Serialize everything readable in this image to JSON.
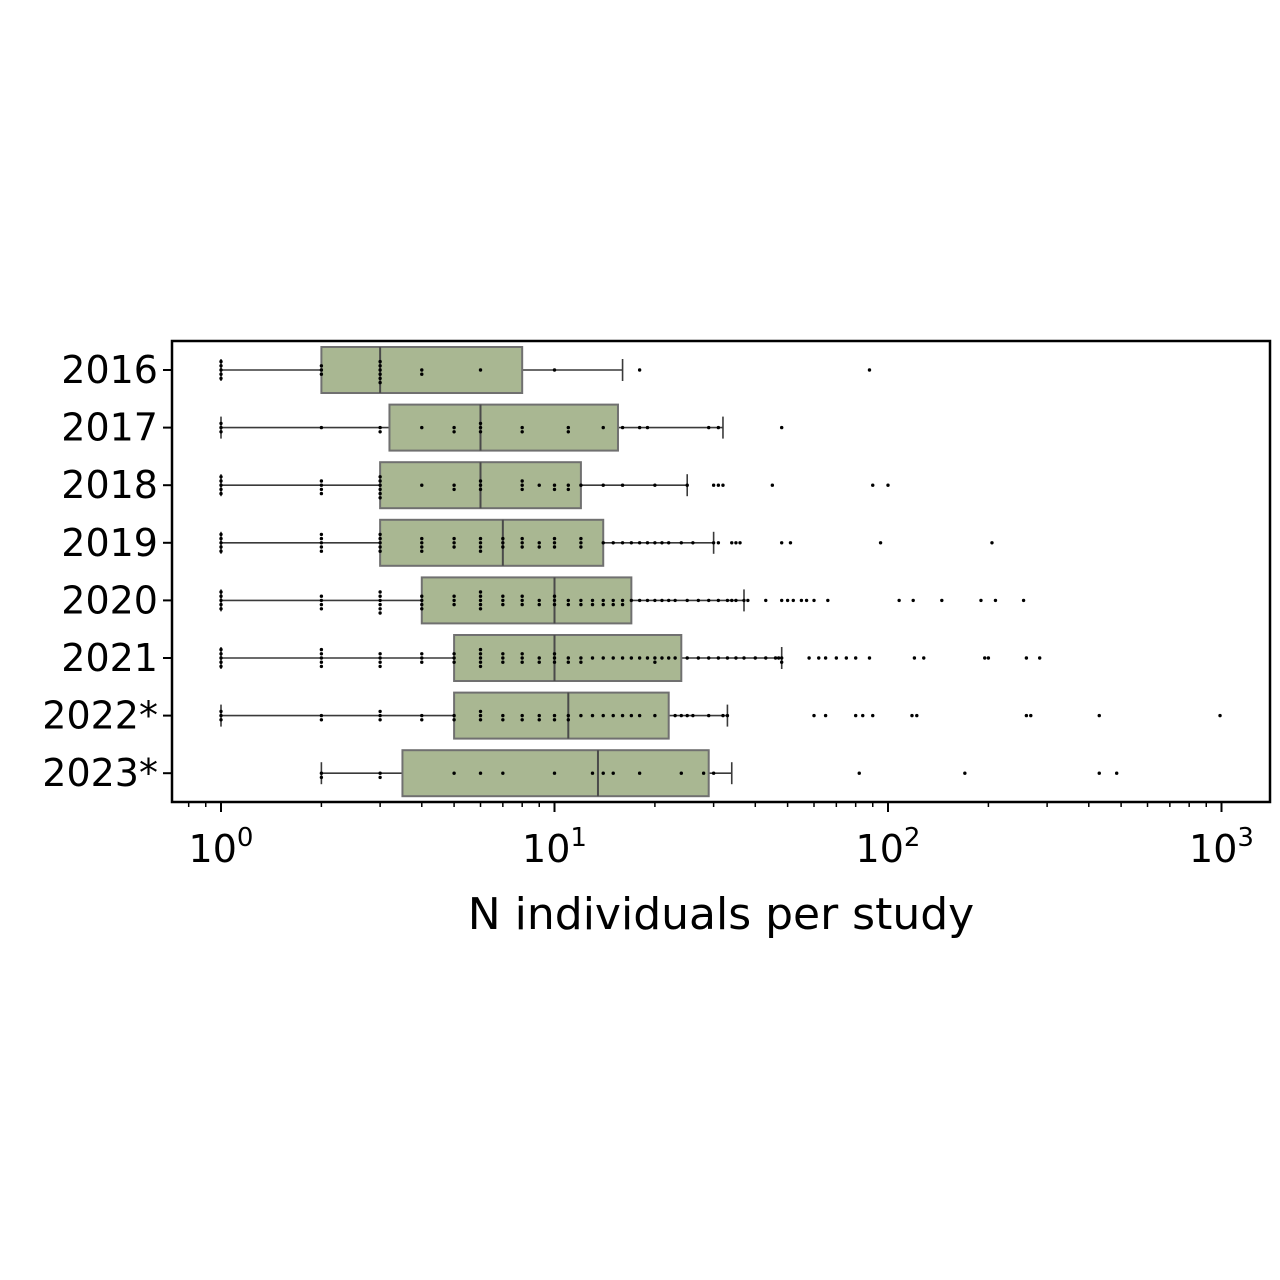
{
  "chart_data": {
    "type": "boxplot",
    "orientation": "horizontal",
    "xlabel": "N individuals per study",
    "ylabel": "",
    "x_scale": "log",
    "xlim": [
      0.72,
      1350
    ],
    "x_ticks": [
      {
        "value": 1,
        "base": "10",
        "exp": "0"
      },
      {
        "value": 10,
        "base": "10",
        "exp": "1"
      },
      {
        "value": 100,
        "base": "10",
        "exp": "2"
      },
      {
        "value": 1000,
        "base": "10",
        "exp": "3"
      }
    ],
    "categories": [
      "2016",
      "2017",
      "2018",
      "2019",
      "2020",
      "2021",
      "2022*",
      "2023*"
    ],
    "box_color": "#a9b792",
    "box_edge_color": "#707070",
    "point_color": "#000000",
    "boxes": [
      {
        "label": "2016",
        "whisker_low": 1,
        "q1": 2,
        "median": 3,
        "q3": 8,
        "whisker_high": 16,
        "points": [
          1,
          1,
          1,
          1,
          1,
          2,
          2,
          2,
          3,
          3,
          3,
          3,
          3,
          3,
          4,
          4,
          6,
          10,
          18,
          88
        ]
      },
      {
        "label": "2017",
        "whisker_low": 1,
        "q1": 3.2,
        "median": 6,
        "q3": 15.5,
        "whisker_high": 32,
        "points": [
          1,
          1,
          1,
          2,
          3,
          3,
          4,
          5,
          5,
          6,
          6,
          6,
          8,
          8,
          11,
          11,
          14,
          16,
          18,
          19,
          29,
          31,
          48
        ]
      },
      {
        "label": "2018",
        "whisker_low": 1,
        "q1": 3,
        "median": 6,
        "q3": 12,
        "whisker_high": 25,
        "points": [
          1,
          1,
          1,
          1,
          1,
          2,
          2,
          2,
          2,
          3,
          3,
          3,
          3,
          3,
          3,
          4,
          5,
          5,
          6,
          6,
          6,
          8,
          8,
          8,
          9,
          10,
          10,
          11,
          11,
          12,
          14,
          16,
          20,
          25,
          30,
          31,
          32,
          45,
          90,
          100
        ]
      },
      {
        "label": "2019",
        "whisker_low": 1,
        "q1": 3,
        "median": 7,
        "q3": 14,
        "whisker_high": 30,
        "points": [
          1,
          1,
          1,
          1,
          1,
          2,
          2,
          2,
          2,
          2,
          3,
          3,
          3,
          3,
          3,
          4,
          4,
          4,
          4,
          5,
          5,
          5,
          6,
          6,
          6,
          6,
          7,
          7,
          7,
          8,
          8,
          8,
          9,
          9,
          10,
          10,
          10,
          12,
          12,
          12,
          14,
          15,
          16,
          17,
          18,
          19,
          20,
          21,
          22,
          24,
          26,
          30,
          31,
          34,
          35,
          36,
          48,
          51,
          95,
          205
        ]
      },
      {
        "label": "2020",
        "whisker_low": 1,
        "q1": 4,
        "median": 10,
        "q3": 17,
        "whisker_high": 37,
        "points": [
          1,
          1,
          1,
          1,
          1,
          2,
          2,
          2,
          2,
          3,
          3,
          3,
          3,
          3,
          3,
          4,
          4,
          4,
          4,
          5,
          5,
          5,
          6,
          6,
          6,
          6,
          6,
          7,
          7,
          7,
          8,
          8,
          8,
          9,
          9,
          10,
          10,
          10,
          11,
          11,
          12,
          12,
          13,
          13,
          14,
          14,
          15,
          15,
          16,
          16,
          17,
          18,
          19,
          20,
          21,
          22,
          23,
          25,
          27,
          29,
          31,
          33,
          34,
          35,
          37,
          38,
          43,
          48,
          50,
          52,
          55,
          57,
          60,
          66,
          108,
          119,
          145,
          190,
          210,
          255
        ]
      },
      {
        "label": "2021",
        "whisker_low": 1,
        "q1": 5,
        "median": 10,
        "q3": 24,
        "whisker_high": 48,
        "points": [
          1,
          1,
          1,
          1,
          1,
          2,
          2,
          2,
          2,
          2,
          3,
          3,
          3,
          3,
          4,
          4,
          4,
          5,
          5,
          5,
          6,
          6,
          6,
          6,
          6,
          7,
          7,
          7,
          8,
          8,
          8,
          9,
          9,
          10,
          10,
          10,
          11,
          11,
          12,
          12,
          13,
          14,
          15,
          16,
          17,
          18,
          19,
          20,
          20,
          21,
          22,
          23,
          25,
          27,
          29,
          31,
          33,
          35,
          37,
          40,
          43,
          46,
          47,
          48,
          48,
          58,
          62,
          65,
          70,
          75,
          80,
          88,
          120,
          128,
          195,
          200,
          260,
          285
        ]
      },
      {
        "label": "2022*",
        "whisker_low": 1,
        "q1": 5,
        "median": 11,
        "q3": 22,
        "whisker_high": 33,
        "points": [
          1,
          1,
          1,
          2,
          2,
          3,
          3,
          3,
          4,
          4,
          5,
          5,
          6,
          6,
          6,
          7,
          7,
          8,
          8,
          9,
          9,
          10,
          10,
          11,
          11,
          12,
          13,
          14,
          15,
          16,
          17,
          18,
          20,
          23,
          24,
          25,
          26,
          29,
          32,
          33,
          60,
          65,
          80,
          84,
          90,
          118,
          122,
          260,
          268,
          430,
          990
        ]
      },
      {
        "label": "2023*",
        "whisker_low": 2,
        "q1": 3.5,
        "median": 13.5,
        "q3": 29,
        "whisker_high": 34,
        "points": [
          2,
          2,
          3,
          3,
          5,
          6,
          7,
          10,
          13,
          14,
          15,
          18,
          24,
          28,
          30,
          82,
          170,
          430,
          485
        ]
      }
    ]
  }
}
